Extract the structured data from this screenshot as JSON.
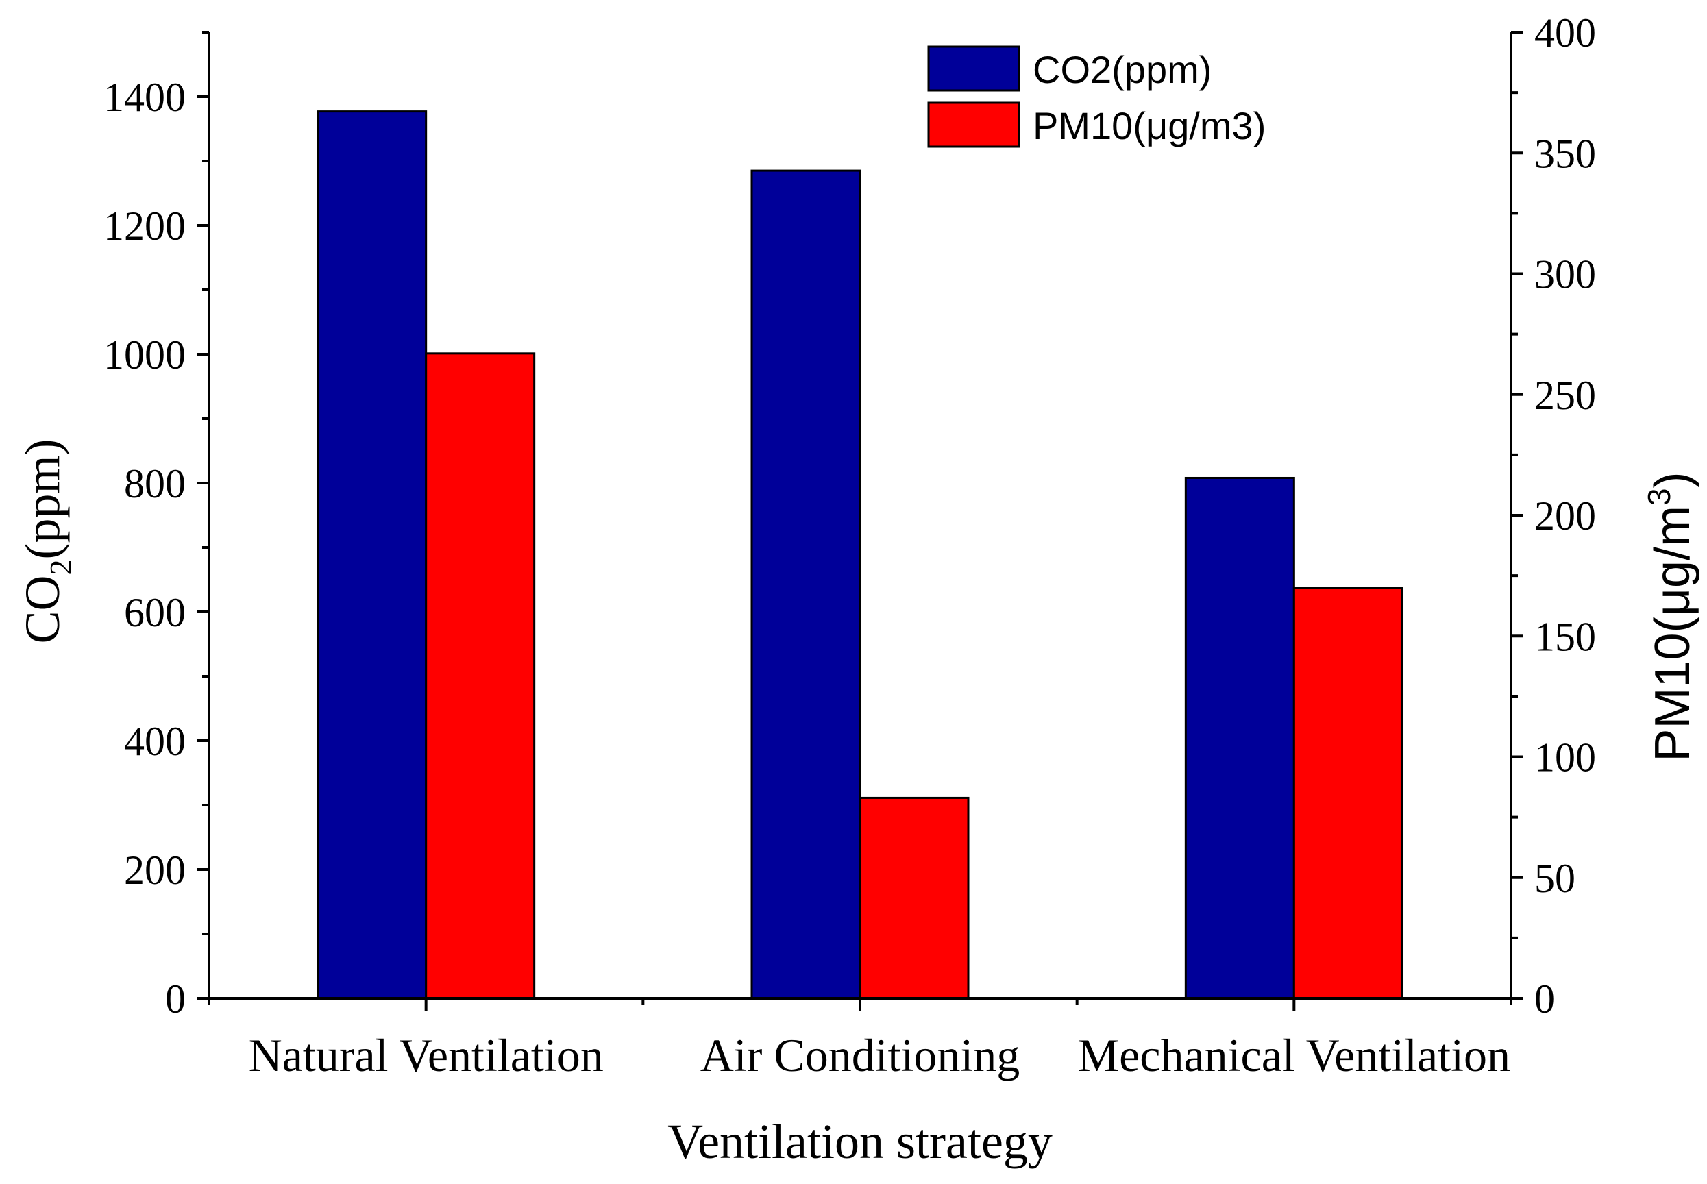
{
  "chart_data": {
    "type": "bar",
    "title": "",
    "xlabel": "Ventilation strategy",
    "categories": [
      "Natural Ventilation",
      "Air Conditioning",
      "Mechanical Ventilation"
    ],
    "series": [
      {
        "name": "CO2(ppm)",
        "axis": "left",
        "color": "#000099",
        "values": [
          1377,
          1285,
          808
        ]
      },
      {
        "name": "PM10(μg/m3)",
        "axis": "right",
        "color": "#ff0000",
        "values": [
          267,
          83,
          170
        ]
      }
    ],
    "y_left": {
      "label_main": "CO",
      "label_sub": "2",
      "label_tail": "(ppm)",
      "ylim": [
        0,
        1500
      ],
      "ticks": [
        "0",
        "200",
        "400",
        "600",
        "800",
        "1000",
        "1200",
        "1400"
      ]
    },
    "y_right": {
      "label_main": "PM10(μg/m",
      "label_sup": "3",
      "label_tail": ")",
      "ylim": [
        0,
        400
      ],
      "ticks": [
        "0",
        "50",
        "100",
        "150",
        "200",
        "250",
        "300",
        "350",
        "400"
      ]
    },
    "legend": {
      "position": "top-right",
      "items": [
        "CO2(ppm)",
        "PM10(μg/m3)"
      ]
    },
    "grid": false
  }
}
